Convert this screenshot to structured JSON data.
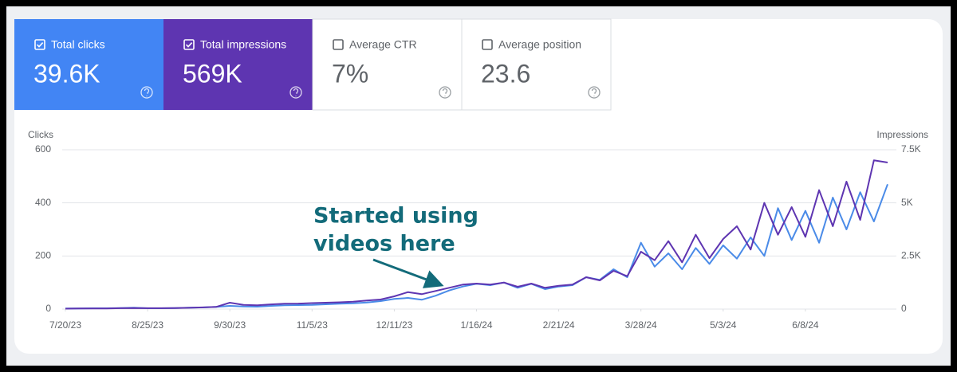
{
  "metrics": [
    {
      "label": "Total clicks",
      "value": "39.6K",
      "checked": true,
      "color": "#4285f4"
    },
    {
      "label": "Total impressions",
      "value": "569K",
      "checked": true,
      "color": "#5e35b1"
    },
    {
      "label": "Average CTR",
      "value": "7%",
      "checked": false
    },
    {
      "label": "Average position",
      "value": "23.6",
      "checked": false
    }
  ],
  "chart_data": {
    "type": "line",
    "ylabel": "Clicks",
    "y2label": "Impressions",
    "annotation": [
      "Started using",
      "videos here"
    ],
    "x": [
      "7/20/23",
      "7/26/23",
      "8/1/23",
      "8/7/23",
      "8/13/23",
      "8/19/23",
      "8/25/23",
      "8/31/23",
      "9/6/23",
      "9/12/23",
      "9/18/23",
      "9/24/23",
      "9/30/23",
      "10/6/23",
      "10/12/23",
      "10/18/23",
      "10/24/23",
      "10/30/23",
      "11/5/23",
      "11/11/23",
      "11/17/23",
      "11/23/23",
      "11/29/23",
      "12/5/23",
      "12/11/23",
      "12/17/23",
      "12/23/23",
      "12/29/23",
      "1/4/24",
      "1/10/24",
      "1/16/24",
      "1/22/24",
      "1/28/24",
      "2/3/24",
      "2/9/24",
      "2/15/24",
      "2/21/24",
      "2/27/24",
      "3/4/24",
      "3/10/24",
      "3/16/24",
      "3/22/24",
      "3/28/24",
      "4/3/24",
      "4/9/24",
      "4/15/24",
      "4/21/24",
      "4/27/24",
      "5/3/24",
      "5/9/24",
      "5/15/24",
      "5/21/24",
      "5/27/24",
      "6/2/24",
      "6/8/24",
      "6/14/24",
      "6/20/24",
      "6/26/24",
      "7/2/24",
      "7/8/24",
      "7/14/24"
    ],
    "series": [
      {
        "name": "Clicks",
        "color": "#4a8be8",
        "axis": "y",
        "values": [
          2,
          2,
          3,
          3,
          4,
          5,
          3,
          3,
          4,
          5,
          6,
          8,
          12,
          10,
          9,
          12,
          14,
          15,
          16,
          18,
          20,
          22,
          25,
          30,
          38,
          42,
          35,
          50,
          70,
          85,
          95,
          90,
          100,
          80,
          95,
          75,
          85,
          90,
          120,
          110,
          150,
          120,
          250,
          160,
          210,
          150,
          230,
          170,
          240,
          190,
          270,
          200,
          380,
          260,
          370,
          250,
          420,
          300,
          440,
          330,
          470
        ]
      },
      {
        "name": "Impressions",
        "color": "#5e35b1",
        "axis": "y2",
        "values": [
          20,
          25,
          30,
          30,
          40,
          50,
          40,
          40,
          50,
          60,
          80,
          100,
          300,
          200,
          180,
          220,
          250,
          260,
          280,
          300,
          320,
          350,
          400,
          450,
          600,
          800,
          700,
          850,
          1000,
          1150,
          1200,
          1150,
          1250,
          1050,
          1200,
          1000,
          1100,
          1150,
          1500,
          1350,
          1800,
          1550,
          2700,
          2300,
          3200,
          2200,
          3500,
          2400,
          3300,
          3900,
          2800,
          5000,
          3500,
          4800,
          3400,
          5600,
          3900,
          6000,
          4200,
          7000,
          6900
        ]
      }
    ],
    "xlim": [
      "7/20/23",
      "7/14/24"
    ],
    "xticks": [
      "7/20/23",
      "8/25/23",
      "9/30/23",
      "11/5/23",
      "12/11/23",
      "1/16/24",
      "2/21/24",
      "3/28/24",
      "5/3/24",
      "6/8/24"
    ],
    "ylim": [
      0,
      600
    ],
    "yticks": [
      0,
      200,
      400,
      600
    ],
    "y2lim": [
      0,
      7500
    ],
    "y2ticks": [
      0,
      {
        "value": 2500,
        "label": "2.5K"
      },
      {
        "value": 5000,
        "label": "5K"
      },
      {
        "value": 7500,
        "label": "7.5K"
      }
    ],
    "grid": true
  }
}
